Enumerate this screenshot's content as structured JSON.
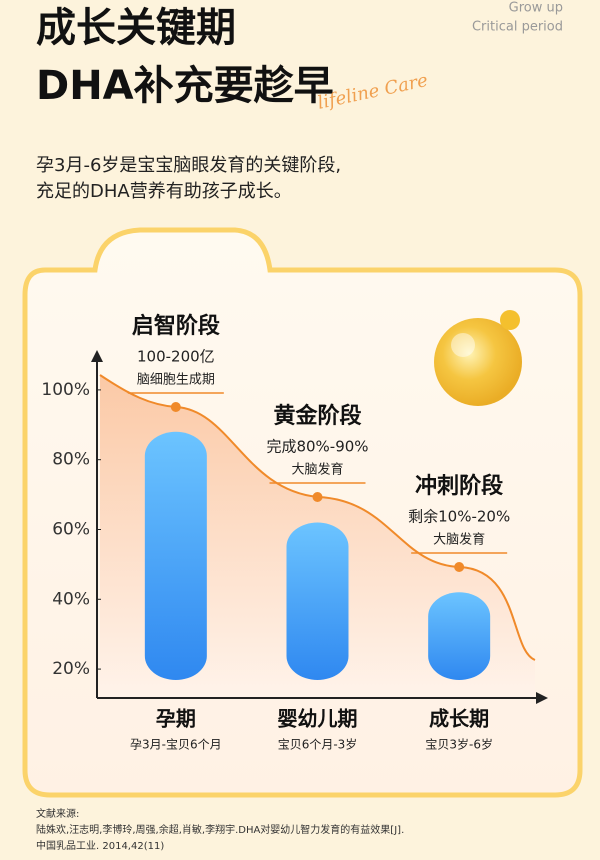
{
  "header": {
    "title_line1": "成长关键期",
    "title_line2": "DHA补充要趁早",
    "tag_line1": "Grow up",
    "tag_line2": "Critical period",
    "script_text": "lifeline Care",
    "intro_line1": "孕3月-6岁是宝宝脑眼发育的关键阶段,",
    "intro_line2": "充足的DHA营养有助孩子成长。"
  },
  "chart_data": {
    "type": "bar",
    "categories": [
      "孕期",
      "婴幼儿期",
      "成长期"
    ],
    "category_notes": [
      "孕3月-宝贝6个月",
      "宝贝6个月-3岁",
      "宝贝3岁-6岁"
    ],
    "values": [
      88,
      62,
      42
    ],
    "color": "#3d9bf5",
    "ylim": [
      12,
      110
    ],
    "yticks": [
      {
        "value": 100,
        "label": "100%"
      },
      {
        "value": 80,
        "label": "80%"
      },
      {
        "value": 60,
        "label": "60%"
      },
      {
        "value": 40,
        "label": "40%"
      },
      {
        "value": 20,
        "label": "20%"
      }
    ],
    "annotations": [
      {
        "title": "启智阶段",
        "line1": "100-200亿",
        "line2": "脑细胞生成期"
      },
      {
        "title": "黄金阶段",
        "line1": "完成80%-90%",
        "line2": "大脑发育"
      },
      {
        "title": "冲刺阶段",
        "line1": "剩余10%-20%",
        "line2": "大脑发育"
      }
    ]
  },
  "references": [
    "文献来源:",
    "陆姝欢,汪志明,李博玲,周强,余超,肖敏,李翔宇.DHA对婴幼儿智力发育的有益效果[J].",
    "中国乳品工业. 2014,42(11)"
  ]
}
